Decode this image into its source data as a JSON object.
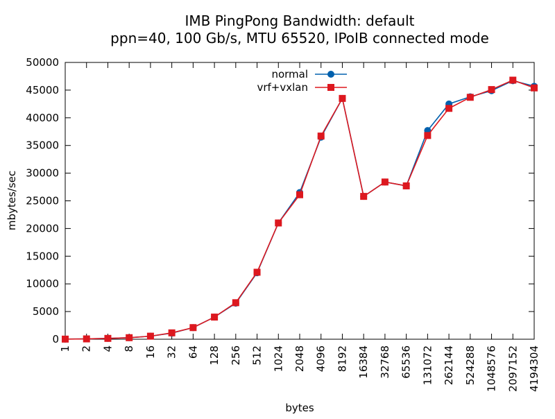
{
  "chart_data": {
    "type": "line",
    "title": "IMB PingPong Bandwidth: default",
    "subtitle": "ppn=40, 100 Gb/s, MTU 65520, IPoIB connected mode",
    "xlabel": "bytes",
    "ylabel": "mbytes/sec",
    "categories": [
      "1",
      "2",
      "4",
      "8",
      "16",
      "32",
      "64",
      "128",
      "256",
      "512",
      "1024",
      "2048",
      "4096",
      "8192",
      "16384",
      "32768",
      "65536",
      "131072",
      "262144",
      "524288",
      "1048576",
      "2097152",
      "4194304"
    ],
    "ylim": [
      0,
      50000
    ],
    "yticks": [
      0,
      5000,
      10000,
      15000,
      20000,
      25000,
      30000,
      35000,
      40000,
      45000,
      50000
    ],
    "grid": false,
    "legend_position": "top-center",
    "series": [
      {
        "name": "normal",
        "color": "#0060ad",
        "marker": "circle",
        "values": [
          20,
          60,
          150,
          280,
          550,
          1100,
          2100,
          4000,
          6500,
          12000,
          21000,
          26500,
          36500,
          43500,
          25800,
          28400,
          27700,
          37700,
          42500,
          43800,
          44900,
          46700,
          45700
        ]
      },
      {
        "name": "vrf+vxlan",
        "color": "#dd181f",
        "marker": "square",
        "values": [
          20,
          60,
          150,
          280,
          550,
          1150,
          2100,
          4000,
          6600,
          12100,
          21000,
          26100,
          36700,
          43500,
          25800,
          28400,
          27700,
          36800,
          41700,
          43700,
          45100,
          46800,
          45400
        ]
      }
    ]
  }
}
